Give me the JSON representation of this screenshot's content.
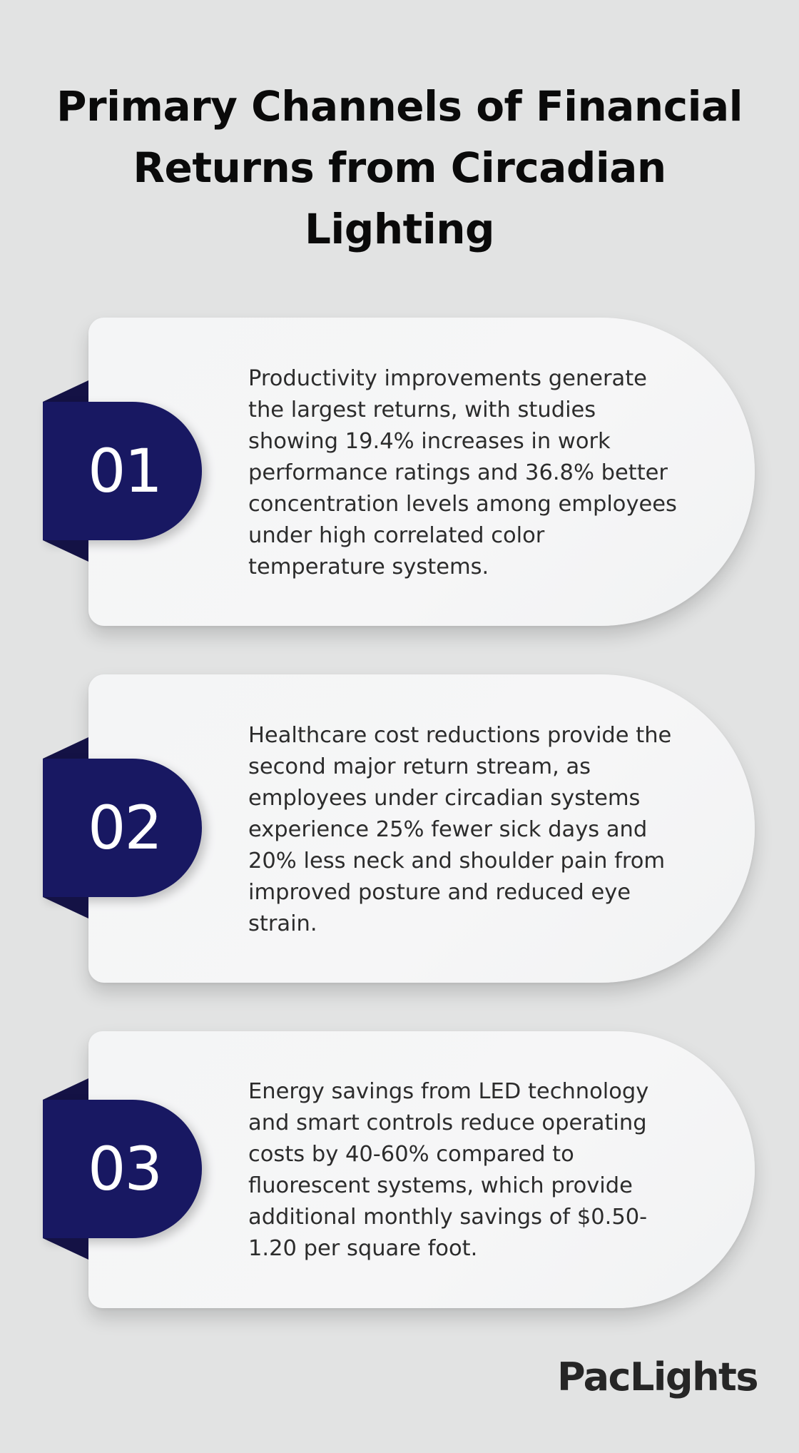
{
  "title": "Primary Channels of Financial Returns from Circadian Lighting",
  "items": [
    {
      "number": "01",
      "text": "Productivity improvements generate the largest returns, with studies showing 19.4% increases in work performance ratings and 36.8% better concentration levels among employees under high correlated color temperature systems."
    },
    {
      "number": "02",
      "text": "Healthcare cost reductions provide the second major return stream, as employees under circadian systems experience 25% fewer sick days and 20% less neck and shoulder pain from improved posture and reduced eye strain."
    },
    {
      "number": "03",
      "text": "Energy savings from LED technology and smart controls reduce operating costs by 40-60% compared to fluorescent systems, which provide additional monthly savings of $0.50-1.20 per square foot."
    }
  ],
  "logo": "PacLights",
  "colors": {
    "background": "#e2e3e3",
    "tab": "#181862",
    "tab_fold": "#141245",
    "card": "#f5f5f6",
    "text": "#2c2c2c"
  }
}
